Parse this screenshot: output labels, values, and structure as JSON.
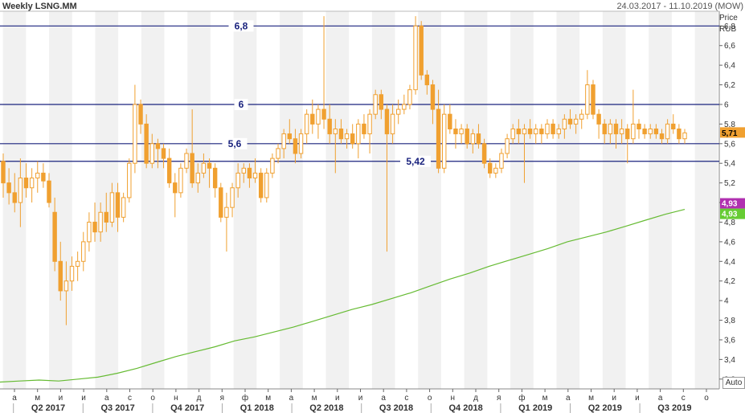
{
  "header": {
    "title": "Weekly LSNG.MM",
    "date_range": "24.03.2017 - 11.10.2019 (MOW)",
    "price_label": "Price",
    "currency_label": "RUB",
    "scale_mode": "Auto"
  },
  "chart_data": {
    "type": "candlestick",
    "title": "Weekly LSNG.MM",
    "ylabel": "Price RUB",
    "ylim": [
      3.1,
      6.95
    ],
    "y_ticks": [
      3.2,
      3.4,
      3.6,
      3.8,
      4,
      4.2,
      4.4,
      4.6,
      4.8,
      5,
      5.2,
      5.4,
      5.6,
      5.8,
      6,
      6.2,
      6.4,
      6.6,
      6.8
    ],
    "y_tick_labels": [
      "3,2",
      "3,4",
      "3,6",
      "3,8",
      "4",
      "4,2",
      "4,4",
      "4,6",
      "4,8",
      "5",
      "5,2",
      "5,4",
      "5,6",
      "5,8",
      "6",
      "6,2",
      "6,4",
      "6,6",
      "6,8"
    ],
    "month_ticks": [
      "а",
      "м",
      "и",
      "и",
      "а",
      "с",
      "о",
      "н",
      "д",
      "я",
      "ф",
      "м",
      "а",
      "м",
      "и",
      "и",
      "а",
      "с",
      "о",
      "н",
      "д",
      "я",
      "ф",
      "м",
      "а",
      "м",
      "и",
      "и",
      "а",
      "с",
      "о"
    ],
    "quarters": [
      "Q2 2017",
      "Q3 2017",
      "Q4 2017",
      "Q1 2018",
      "Q2 2018",
      "Q3 2018",
      "Q4 2018",
      "Q1 2019",
      "Q2 2019",
      "Q3 2019"
    ],
    "levels": [
      {
        "value": 6.8,
        "label": "6,8"
      },
      {
        "value": 6.0,
        "label": "6"
      },
      {
        "value": 5.6,
        "label": "5,6"
      },
      {
        "value": 5.42,
        "label": "5,42"
      }
    ],
    "last_price": {
      "value": 5.71,
      "label": "5,71"
    },
    "ma": {
      "value": 4.93,
      "label": "4,93"
    },
    "ma_marker": {
      "value": 4.93,
      "label": "4,93"
    },
    "candles": [
      [
        5.42,
        5.5,
        5.05,
        5.2
      ],
      [
        5.2,
        5.35,
        4.98,
        5.1
      ],
      [
        5.1,
        5.3,
        4.9,
        5.0
      ],
      [
        5.0,
        5.45,
        4.75,
        5.25
      ],
      [
        5.25,
        5.4,
        5.05,
        5.15
      ],
      [
        5.15,
        5.35,
        5.0,
        5.25
      ],
      [
        5.25,
        5.42,
        5.1,
        5.3
      ],
      [
        5.3,
        5.4,
        5.15,
        5.22
      ],
      [
        5.22,
        5.3,
        4.95,
        5.0
      ],
      [
        4.9,
        5.05,
        4.3,
        4.4
      ],
      [
        4.4,
        4.6,
        4.0,
        4.1
      ],
      [
        4.1,
        4.4,
        3.75,
        4.2
      ],
      [
        4.2,
        4.45,
        4.1,
        4.35
      ],
      [
        4.35,
        4.5,
        4.2,
        4.4
      ],
      [
        4.4,
        4.7,
        4.3,
        4.6
      ],
      [
        4.6,
        4.9,
        4.5,
        4.8
      ],
      [
        4.8,
        5.0,
        4.6,
        4.7
      ],
      [
        4.7,
        5.0,
        4.6,
        4.9
      ],
      [
        4.9,
        5.1,
        4.7,
        4.8
      ],
      [
        4.8,
        5.2,
        4.75,
        5.1
      ],
      [
        5.1,
        5.2,
        4.7,
        4.85
      ],
      [
        4.85,
        5.1,
        4.8,
        5.05
      ],
      [
        5.05,
        5.45,
        5.0,
        5.4
      ],
      [
        5.4,
        6.2,
        5.3,
        6.0
      ],
      [
        6.0,
        6.05,
        5.7,
        5.8
      ],
      [
        5.8,
        5.9,
        5.35,
        5.4
      ],
      [
        5.4,
        5.7,
        5.35,
        5.6
      ],
      [
        5.6,
        5.65,
        5.35,
        5.55
      ],
      [
        5.55,
        5.6,
        5.35,
        5.45
      ],
      [
        5.45,
        5.55,
        5.15,
        5.2
      ],
      [
        5.2,
        5.3,
        4.85,
        5.1
      ],
      [
        5.1,
        5.4,
        5.05,
        5.35
      ],
      [
        5.35,
        5.55,
        5.3,
        5.5
      ],
      [
        5.5,
        5.95,
        5.15,
        5.2
      ],
      [
        5.2,
        5.4,
        5.1,
        5.3
      ],
      [
        5.3,
        5.5,
        5.25,
        5.4
      ],
      [
        5.4,
        5.45,
        5.15,
        5.35
      ],
      [
        5.35,
        5.4,
        5.05,
        5.15
      ],
      [
        5.15,
        5.2,
        4.8,
        4.85
      ],
      [
        4.85,
        5.1,
        4.5,
        4.95
      ],
      [
        4.95,
        5.2,
        4.85,
        5.15
      ],
      [
        5.15,
        5.4,
        5.05,
        5.3
      ],
      [
        5.3,
        5.4,
        5.2,
        5.35
      ],
      [
        5.35,
        5.4,
        5.15,
        5.25
      ],
      [
        5.25,
        5.45,
        5.2,
        5.3
      ],
      [
        5.3,
        5.35,
        5.0,
        5.05
      ],
      [
        5.05,
        5.35,
        5.0,
        5.3
      ],
      [
        5.3,
        5.5,
        5.25,
        5.45
      ],
      [
        5.45,
        5.6,
        5.4,
        5.55
      ],
      [
        5.55,
        5.75,
        5.45,
        5.7
      ],
      [
        5.7,
        5.85,
        5.6,
        5.65
      ],
      [
        5.65,
        5.75,
        5.4,
        5.5
      ],
      [
        5.5,
        5.75,
        5.45,
        5.7
      ],
      [
        5.7,
        5.95,
        5.6,
        5.9
      ],
      [
        5.9,
        6.05,
        5.7,
        5.8
      ],
      [
        5.8,
        6.0,
        5.65,
        5.95
      ],
      [
        5.95,
        6.9,
        5.75,
        5.85
      ],
      [
        5.85,
        6.0,
        5.6,
        5.7
      ],
      [
        5.7,
        5.85,
        5.3,
        5.75
      ],
      [
        5.75,
        5.85,
        5.6,
        5.65
      ],
      [
        5.65,
        5.75,
        5.55,
        5.7
      ],
      [
        5.7,
        5.8,
        5.55,
        5.6
      ],
      [
        5.6,
        5.85,
        5.45,
        5.8
      ],
      [
        5.8,
        5.9,
        5.65,
        5.7
      ],
      [
        5.7,
        5.95,
        5.5,
        5.9
      ],
      [
        5.9,
        6.15,
        5.85,
        6.1
      ],
      [
        6.1,
        6.15,
        5.85,
        5.95
      ],
      [
        5.95,
        6.0,
        4.5,
        5.7
      ],
      [
        5.7,
        6.0,
        5.6,
        5.9
      ],
      [
        5.9,
        6.05,
        5.8,
        5.95
      ],
      [
        5.95,
        6.1,
        5.9,
        6.0
      ],
      [
        6.0,
        6.2,
        5.95,
        6.15
      ],
      [
        6.15,
        6.9,
        6.1,
        6.8
      ],
      [
        6.8,
        6.85,
        6.25,
        6.3
      ],
      [
        6.3,
        6.35,
        6.1,
        6.2
      ],
      [
        6.2,
        6.25,
        5.8,
        5.95
      ],
      [
        5.95,
        6.15,
        5.3,
        5.35
      ],
      [
        5.35,
        6.0,
        5.3,
        5.9
      ],
      [
        5.9,
        6.0,
        5.7,
        5.75
      ],
      [
        5.75,
        5.85,
        5.55,
        5.7
      ],
      [
        5.7,
        5.8,
        5.6,
        5.75
      ],
      [
        5.75,
        5.8,
        5.55,
        5.6
      ],
      [
        5.6,
        5.75,
        5.5,
        5.7
      ],
      [
        5.7,
        5.8,
        5.55,
        5.6
      ],
      [
        5.6,
        5.65,
        5.35,
        5.4
      ],
      [
        5.4,
        5.45,
        5.25,
        5.3
      ],
      [
        5.3,
        5.4,
        5.25,
        5.35
      ],
      [
        5.35,
        5.55,
        5.3,
        5.5
      ],
      [
        5.5,
        5.7,
        5.45,
        5.65
      ],
      [
        5.65,
        5.8,
        5.6,
        5.75
      ],
      [
        5.75,
        5.85,
        5.6,
        5.7
      ],
      [
        5.7,
        5.8,
        5.2,
        5.75
      ],
      [
        5.75,
        5.85,
        5.65,
        5.7
      ],
      [
        5.7,
        5.8,
        5.6,
        5.75
      ],
      [
        5.75,
        5.8,
        5.6,
        5.7
      ],
      [
        5.7,
        5.85,
        5.65,
        5.8
      ],
      [
        5.8,
        5.85,
        5.65,
        5.7
      ],
      [
        5.7,
        5.8,
        5.65,
        5.75
      ],
      [
        5.75,
        5.9,
        5.65,
        5.85
      ],
      [
        5.85,
        5.95,
        5.75,
        5.8
      ],
      [
        5.8,
        5.9,
        5.7,
        5.85
      ],
      [
        5.85,
        5.95,
        5.75,
        5.9
      ],
      [
        5.9,
        6.35,
        5.85,
        6.2
      ],
      [
        6.2,
        6.25,
        5.85,
        5.9
      ],
      [
        5.9,
        5.95,
        5.65,
        5.8
      ],
      [
        5.8,
        5.85,
        5.6,
        5.7
      ],
      [
        5.7,
        5.85,
        5.6,
        5.8
      ],
      [
        5.8,
        5.85,
        5.55,
        5.7
      ],
      [
        5.7,
        5.85,
        5.6,
        5.75
      ],
      [
        5.75,
        5.8,
        5.4,
        5.65
      ],
      [
        5.65,
        6.15,
        5.6,
        5.8
      ],
      [
        5.8,
        5.85,
        5.65,
        5.75
      ],
      [
        5.75,
        5.8,
        5.65,
        5.7
      ],
      [
        5.7,
        5.8,
        5.65,
        5.75
      ],
      [
        5.75,
        5.8,
        5.65,
        5.7
      ],
      [
        5.7,
        5.75,
        5.6,
        5.65
      ],
      [
        5.65,
        5.85,
        5.6,
        5.8
      ],
      [
        5.8,
        5.9,
        5.7,
        5.75
      ],
      [
        5.75,
        5.8,
        5.6,
        5.65
      ],
      [
        5.65,
        5.75,
        5.6,
        5.71
      ]
    ],
    "ma_values": [
      3.17,
      3.18,
      3.19,
      3.18,
      3.2,
      3.22,
      3.26,
      3.31,
      3.37,
      3.43,
      3.48,
      3.53,
      3.59,
      3.63,
      3.68,
      3.73,
      3.79,
      3.85,
      3.91,
      3.96,
      4.02,
      4.08,
      4.15,
      4.22,
      4.28,
      4.35,
      4.41,
      4.47,
      4.53,
      4.6,
      4.65,
      4.7,
      4.76,
      4.82,
      4.88,
      4.93
    ]
  }
}
